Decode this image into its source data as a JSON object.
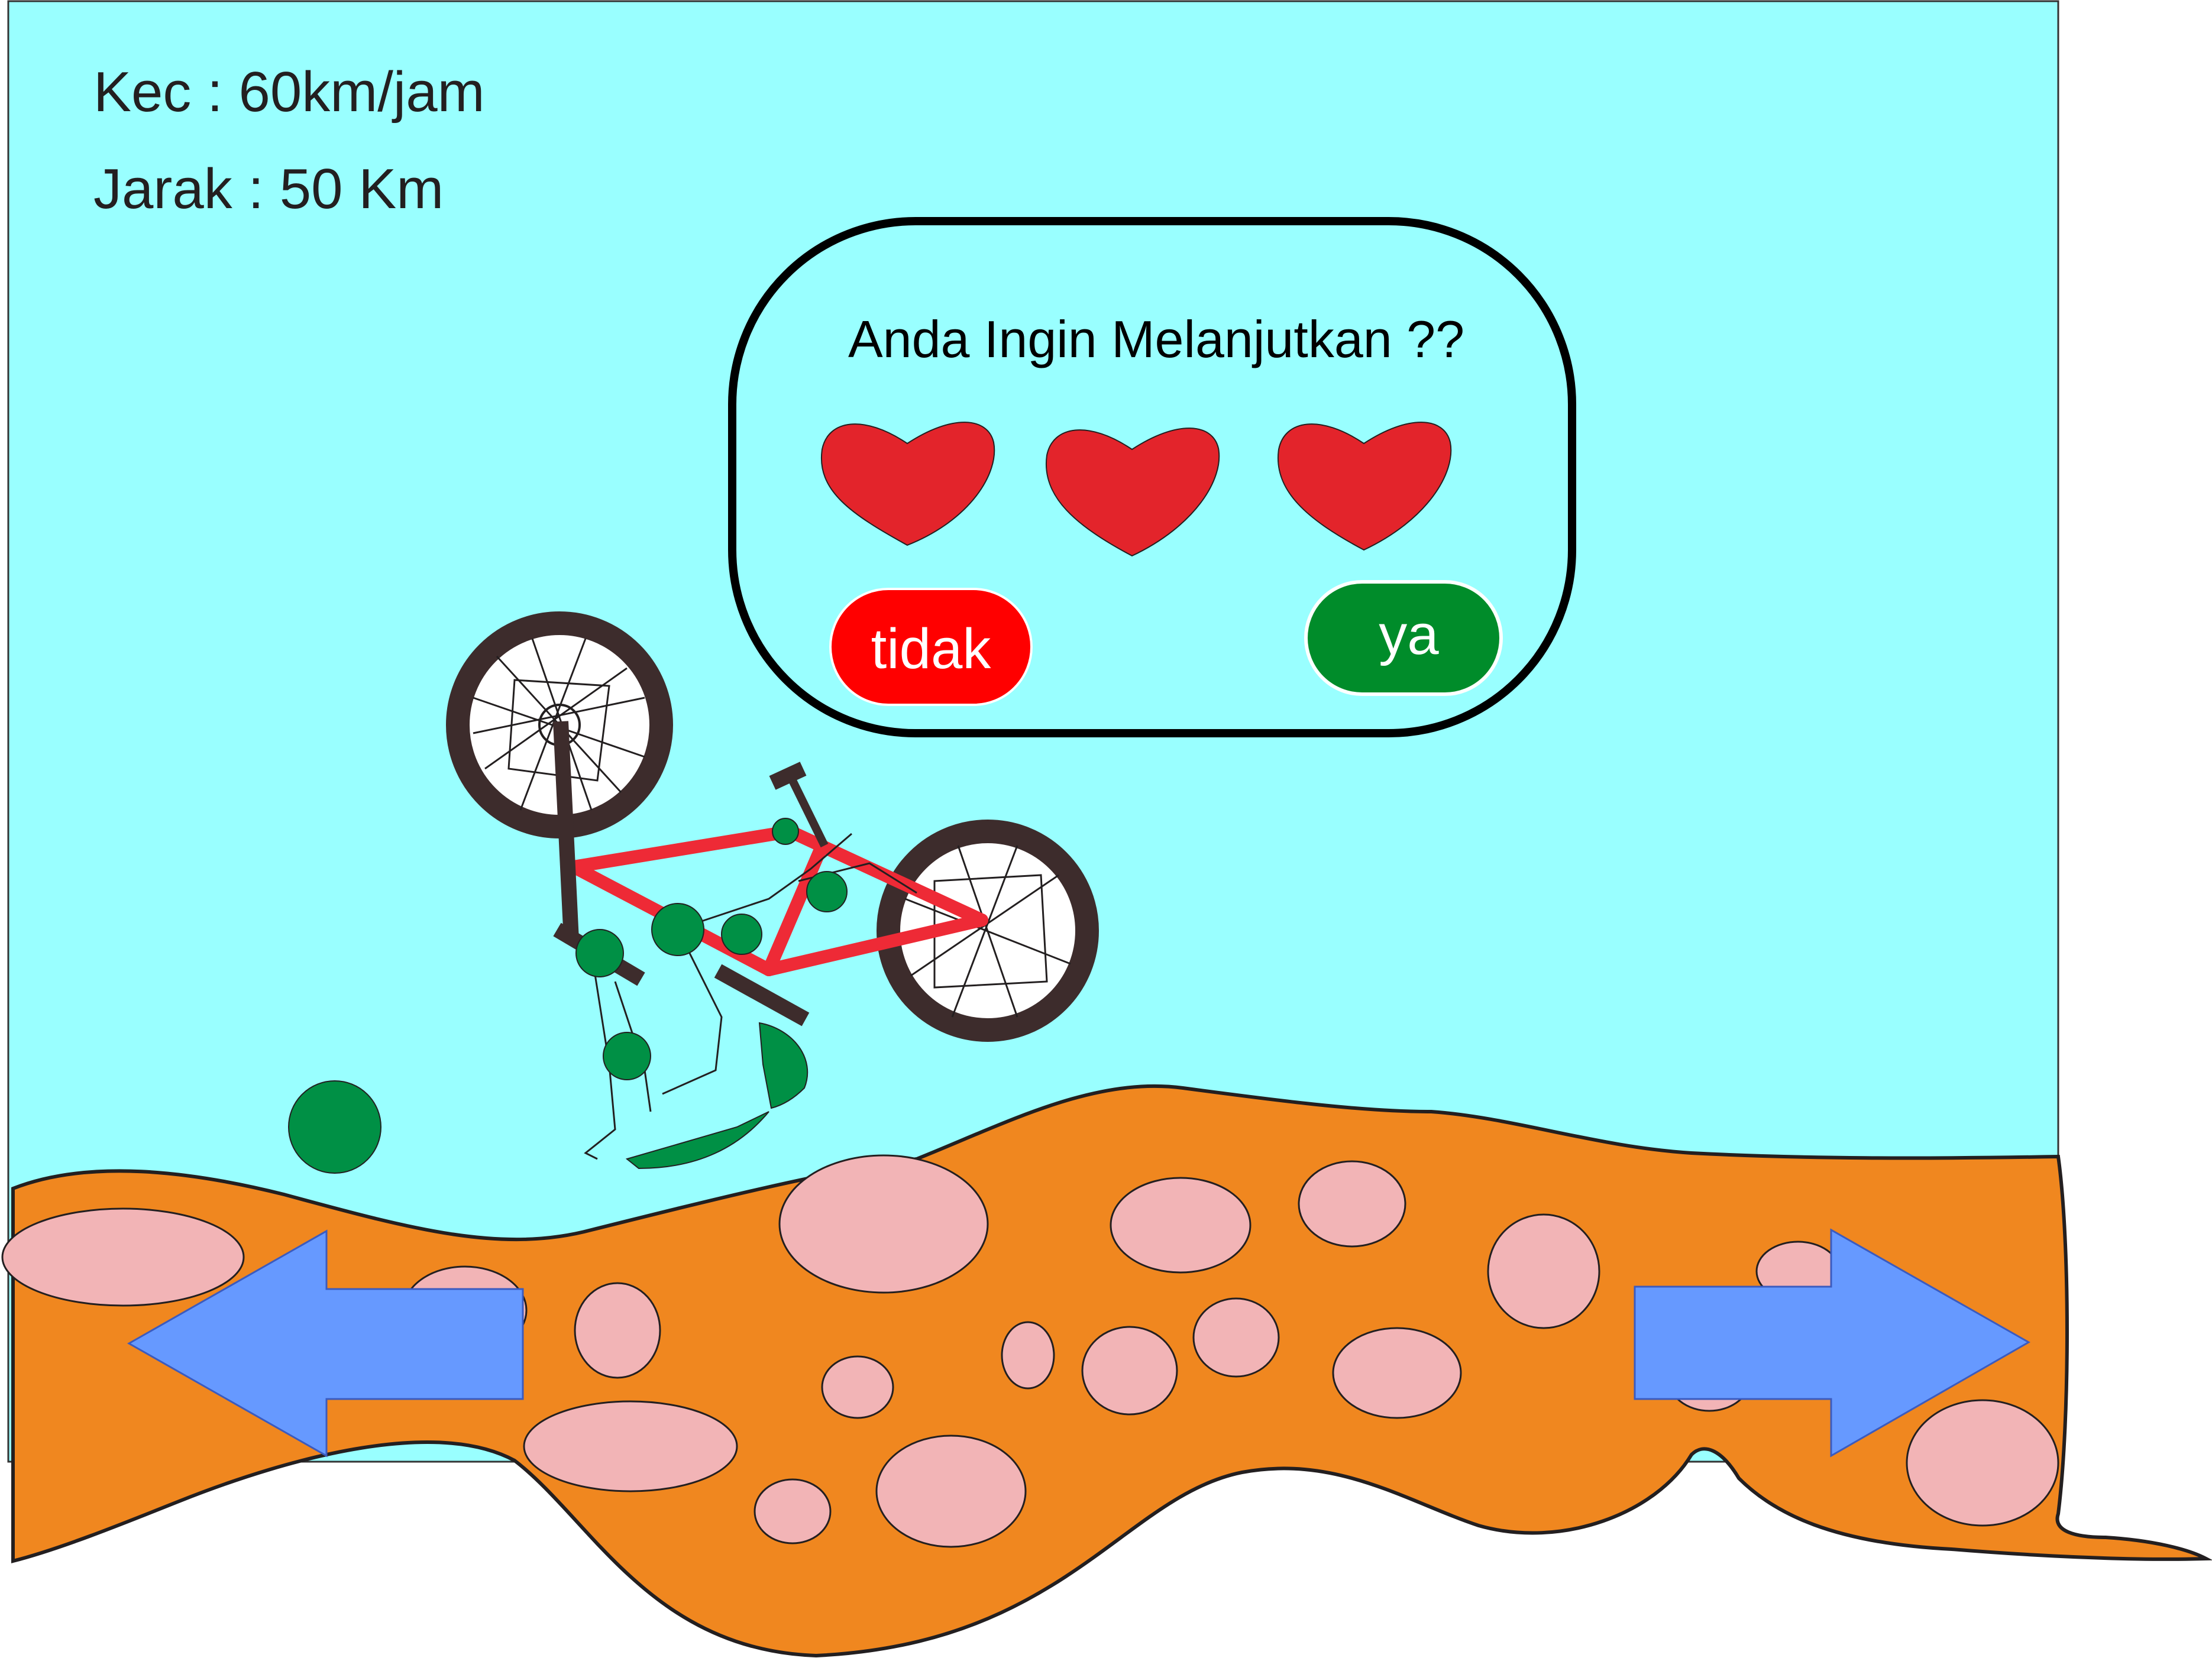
{
  "hud": {
    "speed_text": "Kec : 60km/jam",
    "distance_text": "Jarak : 50 Km"
  },
  "dialog": {
    "title": "Anda Ingin Melanjutkan ??",
    "lives": [
      {
        "name": "heart-icon"
      },
      {
        "name": "heart-icon"
      },
      {
        "name": "heart-icon"
      }
    ],
    "no_label": "tidak",
    "yes_label": "ya"
  },
  "controls": {
    "left_arrow_icon": "arrow-left-icon",
    "right_arrow_icon": "arrow-right-icon"
  },
  "colors": {
    "sky": "#99ffff",
    "ground": "#f0871f",
    "rocks": "#f2b4b6",
    "heart": "#e3242b",
    "no_button": "#ff0000",
    "yes_button": "#008c2a",
    "arrow": "#6699ff",
    "bike_frame": "#ee2a36",
    "rider": "#009045"
  }
}
